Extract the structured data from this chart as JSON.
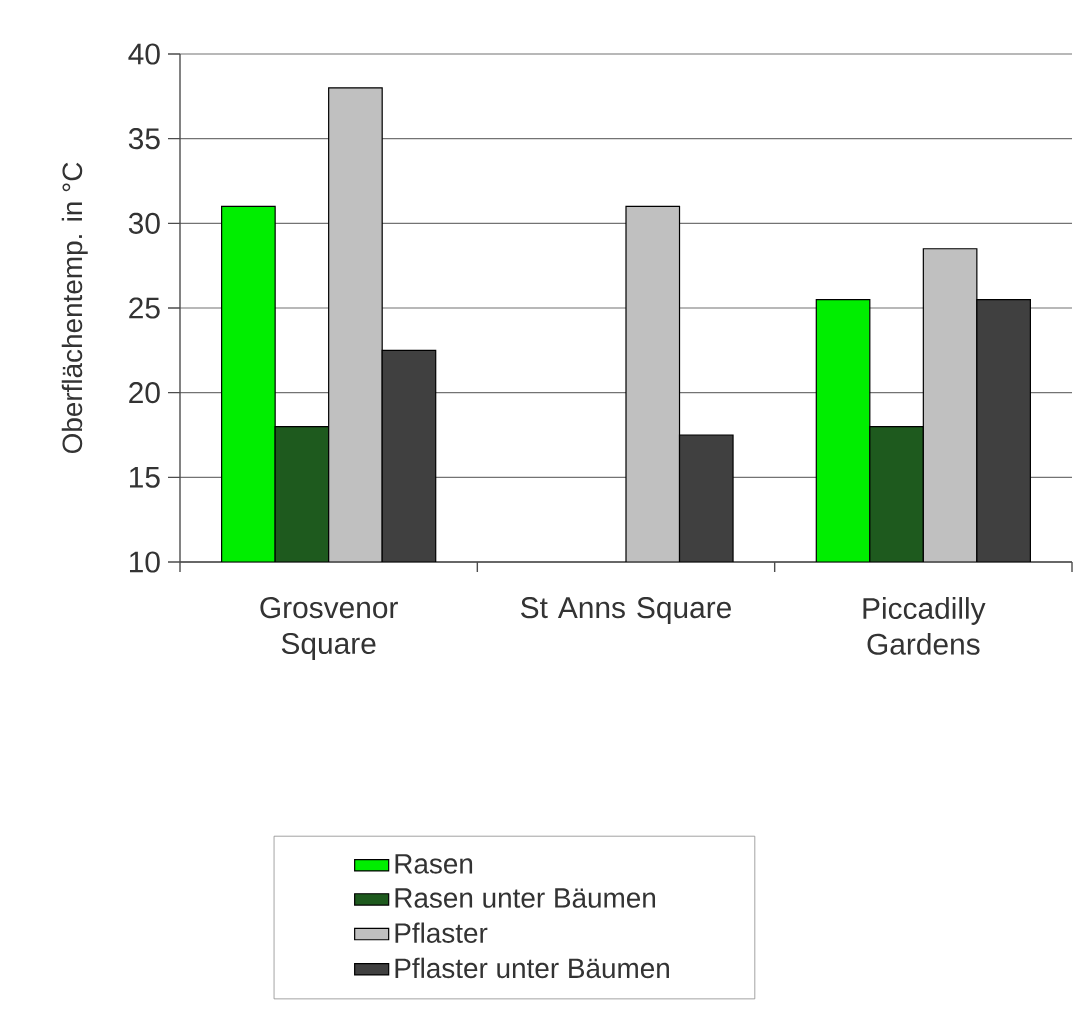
{
  "chart_data": {
    "type": "bar",
    "ylabel": "Oberflächentemp. in °C",
    "categories": [
      "Grosvenor Square",
      "St Anns Square",
      "Piccadilly Gardens"
    ],
    "series": [
      {
        "name": "Rasen",
        "color": "#00ee00",
        "values": [
          31,
          null,
          25.5
        ]
      },
      {
        "name": "Rasen unter Bäumen",
        "color": "#1e5a1e",
        "values": [
          18,
          null,
          18
        ]
      },
      {
        "name": "Pflaster",
        "color": "#c0c0c0",
        "values": [
          38,
          31,
          28.5
        ]
      },
      {
        "name": "Pflaster unter Bäumen",
        "color": "#404040",
        "values": [
          22.5,
          17.5,
          25.5
        ]
      }
    ],
    "ylim": [
      10,
      40
    ],
    "yticks": [
      10,
      15,
      20,
      25,
      30,
      35,
      40
    ],
    "grid": "y",
    "legend": "bottom"
  }
}
